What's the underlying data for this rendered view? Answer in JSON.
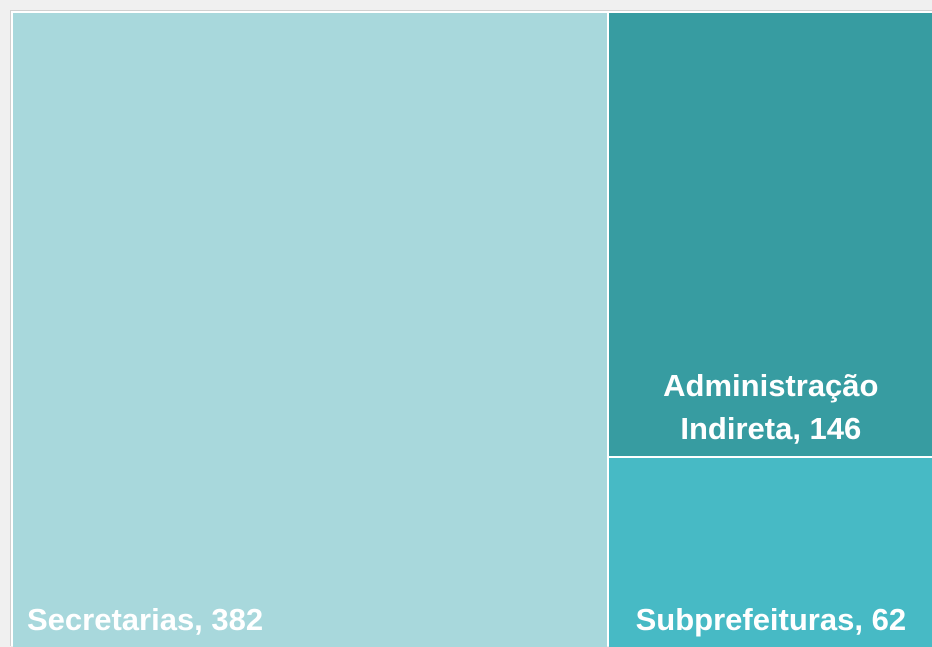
{
  "chart_data": {
    "type": "treemap",
    "categories": [
      "Secretarias, 382",
      "Administração Indireta, 146",
      "Subprefeituras, 62"
    ],
    "values": [
      382,
      146,
      62
    ],
    "colors": [
      "#a8d8dc",
      "#379ca1",
      "#47bac5"
    ]
  }
}
